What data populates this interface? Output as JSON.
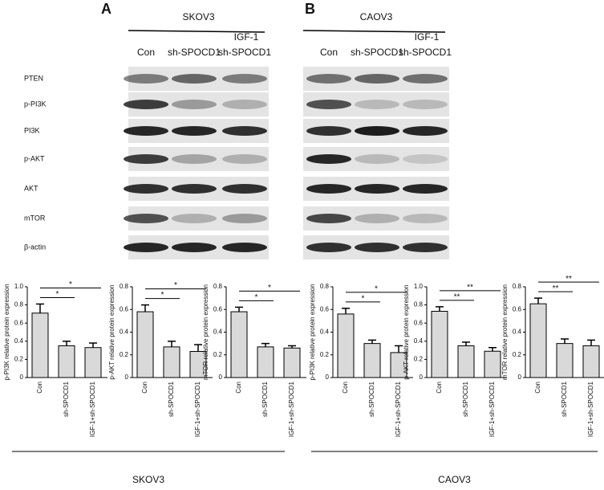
{
  "blots": [
    {
      "letter": "A",
      "cell_line": "SKOV3",
      "lanes": [
        "Con",
        "sh-SPOCD1",
        "sh-SPOCD1"
      ],
      "lane_prefix": "IGF-1",
      "proteins": [
        "PTEN",
        "p-PI3K",
        "PI3K",
        "p-AKT",
        "AKT",
        "mTOR",
        "β-actin"
      ]
    },
    {
      "letter": "B",
      "cell_line": "CAOV3",
      "lanes": [
        "Con",
        "sh-SPOCD1",
        "sh-SPOCD1"
      ],
      "lane_prefix": "IGF-1"
    }
  ],
  "groups": [
    "SKOV3",
    "CAOV3"
  ],
  "chart_data": [
    {
      "type": "bar",
      "ylabel": "p-PI3K relative protein expression",
      "categories": [
        "Con",
        "sh-SPOCD1",
        "IGF-1+sh-SPOCD1"
      ],
      "values": [
        0.71,
        0.35,
        0.33
      ],
      "errors": [
        0.1,
        0.05,
        0.05
      ],
      "color": "#d9d9d9",
      "ylim": [
        0,
        1
      ],
      "yticks": [
        0,
        0.2,
        0.4,
        0.6,
        0.8,
        {
          "value": 1,
          "label": "1.0"
        }
      ],
      "annotations": [
        {
          "label": "*"
        },
        {
          "label": "*"
        }
      ]
    },
    {
      "type": "bar",
      "ylabel": "p-AKT relative protein expression",
      "categories": [
        "Con",
        "sh-SPOCD1",
        "IGF-1+sh-SPOCD1"
      ],
      "values": [
        0.58,
        0.27,
        0.23
      ],
      "errors": [
        0.06,
        0.05,
        0.06
      ],
      "color": "#d9d9d9",
      "ylim": [
        0,
        0.8
      ],
      "yticks": [
        0,
        0.2,
        0.4,
        0.6,
        0.8
      ],
      "annotations": [
        {
          "label": "*"
        },
        {
          "label": "*"
        }
      ]
    },
    {
      "type": "bar",
      "ylabel": "mTOR relative protein expression",
      "categories": [
        "Con",
        "sh-SPOCD1",
        "IGF-1+sh-SPOCD1"
      ],
      "values": [
        0.58,
        0.27,
        0.26
      ],
      "errors": [
        0.04,
        0.03,
        0.02
      ],
      "color": "#d9d9d9",
      "ylim": [
        0,
        0.8
      ],
      "yticks": [
        0,
        0.2,
        0.4,
        0.6,
        0.8
      ],
      "annotations": [
        {
          "label": "*"
        },
        {
          "label": "*"
        }
      ]
    },
    {
      "type": "bar",
      "ylabel": "p-PI3K relative protein expression",
      "categories": [
        "Con",
        "sh-SPOCD1",
        "IGF-1+sh-SPOCD1"
      ],
      "values": [
        0.56,
        0.3,
        0.22
      ],
      "errors": [
        0.05,
        0.03,
        0.06
      ],
      "color": "#d9d9d9",
      "ylim": [
        0,
        0.8
      ],
      "yticks": [
        0,
        0.2,
        0.4,
        0.6,
        0.8
      ],
      "annotations": [
        {
          "label": "*"
        },
        {
          "label": "*"
        }
      ]
    },
    {
      "type": "bar",
      "ylabel": "p-AKT relative protein expression",
      "categories": [
        "Con",
        "sh-SPOCD1",
        "IGF-1+sh-SPOCD1"
      ],
      "values": [
        0.73,
        0.35,
        0.29
      ],
      "errors": [
        0.05,
        0.04,
        0.04
      ],
      "color": "#d9d9d9",
      "ylim": [
        0,
        1
      ],
      "yticks": [
        0,
        0.2,
        0.4,
        0.6,
        0.8,
        {
          "value": 1,
          "label": "1.0"
        }
      ],
      "annotations": [
        {
          "label": "**"
        },
        {
          "label": "**"
        }
      ]
    },
    {
      "type": "bar",
      "ylabel": "mTOR relative protein expression",
      "categories": [
        "Con",
        "sh-SPOCD1",
        "IGF-1+sh-SPOCD1"
      ],
      "values": [
        0.65,
        0.3,
        0.28
      ],
      "errors": [
        0.05,
        0.04,
        0.05
      ],
      "color": "#d9d9d9",
      "ylim": [
        0,
        0.8
      ],
      "yticks": [
        0,
        0.2,
        0.4,
        0.6,
        0.8
      ],
      "annotations": [
        {
          "label": "**"
        },
        {
          "label": "**"
        }
      ]
    }
  ]
}
